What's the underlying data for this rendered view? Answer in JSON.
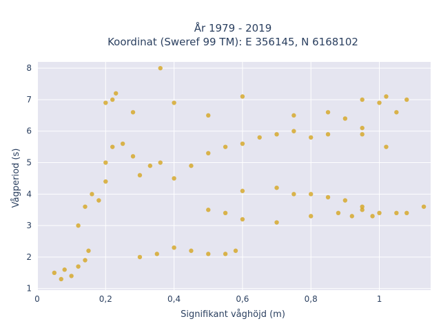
{
  "chart_data": {
    "type": "scatter",
    "title_line1": "År 1979 - 2019",
    "title_line2": "Koordinat (Sweref 99 TM): E 356145, N 6168102",
    "xlabel": "Signifikant våghöjd (m)",
    "ylabel": "Vågperiod (s)",
    "xlim": [
      0,
      1.15
    ],
    "ylim": [
      0.95,
      8.2
    ],
    "x_ticks": [
      0,
      0.2,
      0.4,
      0.6,
      0.8,
      1
    ],
    "x_tick_labels": [
      "0",
      "0,2",
      "0,4",
      "0,6",
      "0,8",
      "1"
    ],
    "y_ticks": [
      1,
      2,
      3,
      4,
      5,
      6,
      7,
      8
    ],
    "y_tick_labels": [
      "1",
      "2",
      "3",
      "4",
      "5",
      "6",
      "7",
      "8"
    ],
    "grid": true,
    "background_color": "#e5e5f0",
    "marker_color": "#d4a520",
    "points": [
      [
        0.05,
        1.5
      ],
      [
        0.07,
        1.3
      ],
      [
        0.08,
        1.6
      ],
      [
        0.1,
        1.4
      ],
      [
        0.12,
        1.7
      ],
      [
        0.14,
        1.9
      ],
      [
        0.15,
        2.2
      ],
      [
        0.12,
        3.0
      ],
      [
        0.14,
        3.6
      ],
      [
        0.16,
        4.0
      ],
      [
        0.18,
        3.8
      ],
      [
        0.2,
        4.4
      ],
      [
        0.2,
        5.0
      ],
      [
        0.22,
        5.5
      ],
      [
        0.25,
        5.6
      ],
      [
        0.28,
        5.2
      ],
      [
        0.3,
        4.6
      ],
      [
        0.33,
        4.9
      ],
      [
        0.36,
        5.0
      ],
      [
        0.4,
        4.5
      ],
      [
        0.45,
        4.9
      ],
      [
        0.5,
        5.3
      ],
      [
        0.55,
        5.5
      ],
      [
        0.6,
        5.6
      ],
      [
        0.65,
        5.8
      ],
      [
        0.7,
        5.9
      ],
      [
        0.75,
        6.0
      ],
      [
        0.8,
        5.8
      ],
      [
        0.85,
        5.9
      ],
      [
        0.9,
        6.4
      ],
      [
        0.95,
        6.1
      ],
      [
        0.2,
        6.9
      ],
      [
        0.22,
        7.0
      ],
      [
        0.23,
        7.2
      ],
      [
        0.28,
        6.6
      ],
      [
        0.36,
        8.0
      ],
      [
        0.4,
        6.9
      ],
      [
        0.5,
        6.5
      ],
      [
        0.6,
        7.1
      ],
      [
        0.75,
        6.5
      ],
      [
        0.85,
        6.6
      ],
      [
        0.95,
        7.0
      ],
      [
        1.0,
        6.9
      ],
      [
        1.02,
        7.1
      ],
      [
        1.08,
        7.0
      ],
      [
        1.05,
        6.6
      ],
      [
        0.95,
        5.9
      ],
      [
        1.02,
        5.5
      ],
      [
        0.5,
        3.5
      ],
      [
        0.55,
        3.4
      ],
      [
        0.6,
        3.2
      ],
      [
        0.7,
        3.1
      ],
      [
        0.8,
        3.3
      ],
      [
        0.88,
        3.4
      ],
      [
        0.92,
        3.3
      ],
      [
        0.95,
        3.5
      ],
      [
        0.98,
        3.3
      ],
      [
        1.0,
        3.4
      ],
      [
        1.05,
        3.4
      ],
      [
        1.08,
        3.4
      ],
      [
        1.13,
        3.6
      ],
      [
        0.6,
        4.1
      ],
      [
        0.7,
        4.2
      ],
      [
        0.75,
        4.0
      ],
      [
        0.8,
        4.0
      ],
      [
        0.85,
        3.9
      ],
      [
        0.9,
        3.8
      ],
      [
        0.95,
        3.6
      ],
      [
        0.3,
        2.0
      ],
      [
        0.35,
        2.1
      ],
      [
        0.4,
        2.3
      ],
      [
        0.45,
        2.2
      ],
      [
        0.5,
        2.1
      ],
      [
        0.55,
        2.1
      ],
      [
        0.58,
        2.2
      ]
    ]
  }
}
